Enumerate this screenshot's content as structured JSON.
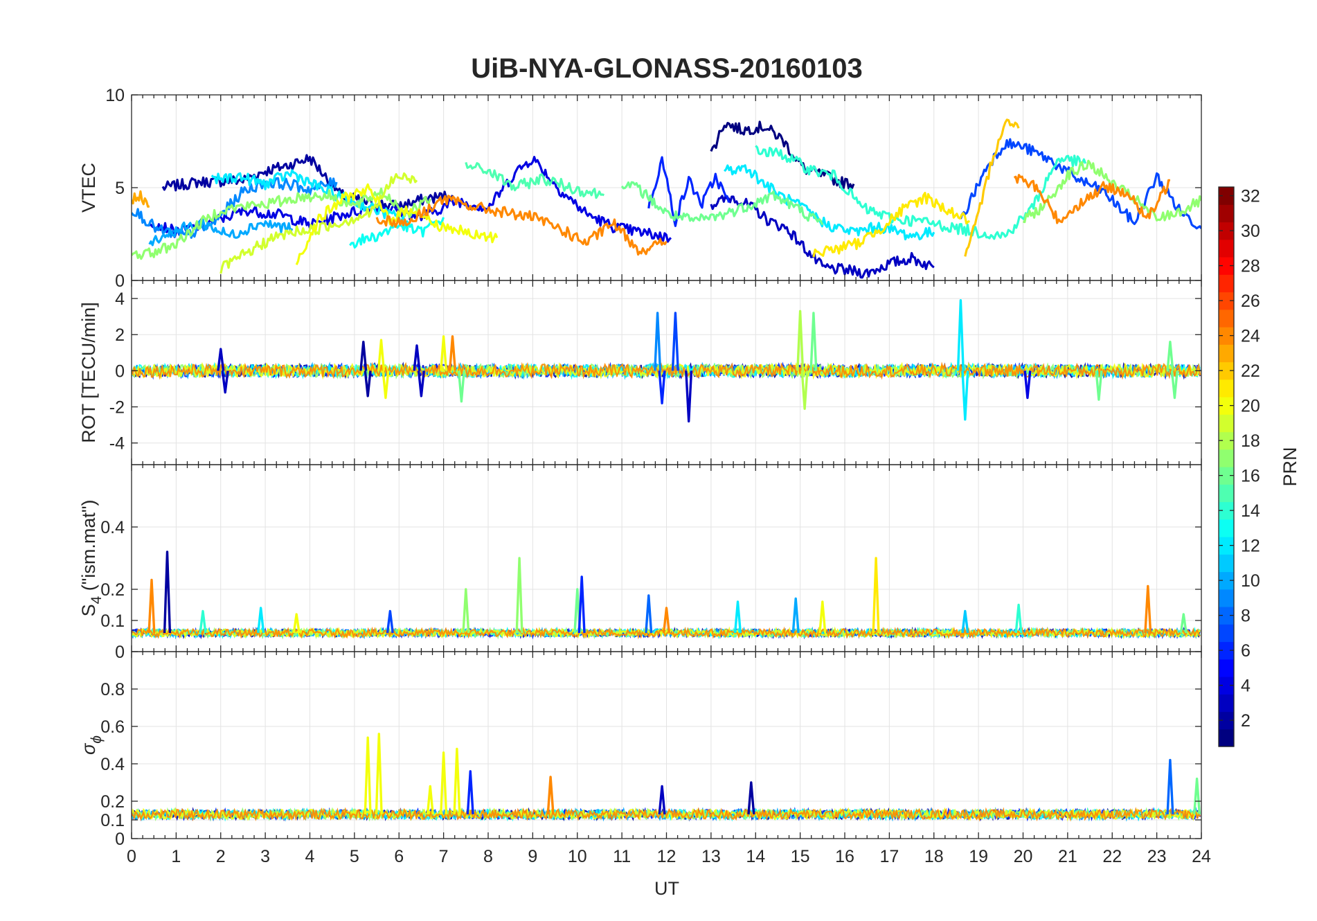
{
  "chart_data": {
    "type": "line",
    "title": "UiB-NYA-GLONASS-20160103",
    "xlabel": "UT",
    "xlim": [
      0,
      24
    ],
    "x_ticks": [
      0,
      1,
      2,
      3,
      4,
      5,
      6,
      7,
      8,
      9,
      10,
      11,
      12,
      13,
      14,
      15,
      16,
      17,
      18,
      19,
      20,
      21,
      22,
      23,
      24
    ],
    "x_tick_labels": [
      "0",
      "1",
      "2",
      "3",
      "4",
      "5",
      "6",
      "7",
      "8",
      "9",
      "10",
      "11",
      "12",
      "13",
      "14",
      "15",
      "16",
      "17",
      "18",
      "19",
      "20",
      "21",
      "22",
      "23",
      "24"
    ],
    "grid": true,
    "colorbar": {
      "label": "PRN",
      "colormap": "jet",
      "range": [
        1,
        32
      ],
      "ticks": [
        2,
        4,
        6,
        8,
        10,
        12,
        14,
        16,
        18,
        20,
        22,
        24,
        26,
        28,
        30,
        32
      ],
      "tick_labels": [
        "2",
        "4",
        "6",
        "8",
        "10",
        "12",
        "14",
        "16",
        "18",
        "20",
        "22",
        "24",
        "26",
        "28",
        "30",
        "32"
      ]
    },
    "panels": [
      {
        "id": "vtec",
        "ylabel": "VTEC",
        "ylim": [
          0,
          10
        ],
        "y_ticks": [
          0,
          5,
          10
        ],
        "y_tick_labels": [
          "0",
          "5",
          "10"
        ],
        "series": [
          {
            "prn": 2,
            "x": [
              0.7,
              1.5,
              2.5,
              3.0,
              3.5,
              4.0,
              4.7,
              5.3,
              6.0,
              6.6,
              7.2
            ],
            "y": [
              5.0,
              5.3,
              5.4,
              5.9,
              6.2,
              6.6,
              4.6,
              4.2,
              4.0,
              4.4,
              4.6
            ]
          },
          {
            "prn": 1,
            "x": [
              13.0,
              13.3,
              13.7,
              14.2,
              14.6,
              14.9,
              15.1,
              15.5,
              15.9,
              16.2
            ],
            "y": [
              6.8,
              8.5,
              8.1,
              8.3,
              7.6,
              6.6,
              6.0,
              5.7,
              5.3,
              5.2
            ]
          },
          {
            "prn": 3,
            "x": [
              13.0,
              13.5,
              14.0,
              14.3,
              14.7,
              15.5,
              16.5,
              17.0,
              17.5,
              18.0
            ],
            "y": [
              4.1,
              4.5,
              3.8,
              3.2,
              2.8,
              0.7,
              0.4,
              0.9,
              1.2,
              0.7
            ]
          },
          {
            "prn": 4,
            "x": [
              0.4,
              1.0,
              1.7,
              2.6,
              3.4,
              4.0,
              4.8,
              5.6,
              6.5,
              7.3,
              8.0,
              8.6,
              9.0,
              9.6,
              10.2,
              10.8,
              11.4,
              12.1
            ],
            "y": [
              3.2,
              2.6,
              3.1,
              3.8,
              3.5,
              3.0,
              3.6,
              4.0,
              3.4,
              4.3,
              3.9,
              5.8,
              6.6,
              4.9,
              3.6,
              2.9,
              2.6,
              2.3
            ]
          },
          {
            "prn": 6,
            "x": [
              11.6,
              11.9,
              12.2,
              12.5,
              12.8,
              13.1,
              13.4
            ],
            "y": [
              4.0,
              6.5,
              3.2,
              5.4,
              4.1,
              5.6,
              4.2
            ]
          },
          {
            "prn": 7,
            "x": [
              18.6,
              19.2,
              19.6,
              20.0,
              20.6,
              21.2,
              21.8,
              22.5,
              23.0,
              23.5,
              24.0
            ],
            "y": [
              3.2,
              6.2,
              7.4,
              7.2,
              6.5,
              5.5,
              4.8,
              3.1,
              5.6,
              3.8,
              2.8
            ]
          },
          {
            "prn": 9,
            "x": [
              0.0,
              0.6,
              1.2,
              1.8,
              2.5,
              3.0,
              3.5,
              4.0,
              4.6
            ],
            "y": [
              3.9,
              2.7,
              2.4,
              3.0,
              4.8,
              5.3,
              5.2,
              4.9,
              5.3
            ]
          },
          {
            "prn": 10,
            "x": [
              0.4,
              1.0,
              1.6,
              2.2,
              2.9,
              3.6
            ],
            "y": [
              2.1,
              2.7,
              3.1,
              2.4,
              3.1,
              2.8
            ]
          },
          {
            "prn": 12,
            "x": [
              1.8,
              2.4,
              3.0,
              3.6,
              4.2,
              4.8,
              5.5,
              6.2
            ],
            "y": [
              5.4,
              5.6,
              5.2,
              5.8,
              5.0,
              4.4,
              3.8,
              3.2
            ]
          },
          {
            "prn": 12,
            "x": [
              13.3,
              13.8,
              14.2,
              14.6,
              15.0,
              15.6,
              16.2,
              16.8,
              17.5,
              18.0
            ],
            "y": [
              5.9,
              6.1,
              5.2,
              4.5,
              4.0,
              3.0,
              2.6,
              2.9,
              2.4,
              2.6
            ]
          },
          {
            "prn": 13,
            "x": [
              4.9,
              5.5,
              6.0,
              6.5,
              7.0
            ],
            "y": [
              2.0,
              2.4,
              3.0,
              2.6,
              3.4
            ]
          },
          {
            "prn": 14,
            "x": [
              14.0,
              14.6,
              15.2,
              15.8,
              16.4,
              17.1,
              17.7,
              18.3,
              19.0,
              19.6,
              20.2,
              20.8,
              21.4
            ],
            "y": [
              7.0,
              6.8,
              6.0,
              5.6,
              3.9,
              3.3,
              3.2,
              2.9,
              2.6,
              2.4,
              3.9,
              6.6,
              6.3
            ]
          },
          {
            "prn": 15,
            "x": [
              7.5,
              8.0,
              8.6,
              9.2,
              10.0,
              10.6
            ],
            "y": [
              6.2,
              5.9,
              5.0,
              5.5,
              4.9,
              4.6
            ]
          },
          {
            "prn": 16,
            "x": [
              11.0,
              11.4,
              12.0,
              12.6,
              13.2,
              13.8,
              14.4,
              15.0,
              15.5
            ],
            "y": [
              5.3,
              4.9,
              3.6,
              3.2,
              3.5,
              4.0,
              4.6,
              3.8,
              3.0
            ]
          },
          {
            "prn": 17,
            "x": [
              0.0,
              0.5,
              1.0,
              1.5,
              2.0,
              2.6,
              3.2,
              3.8,
              4.4,
              5.0,
              5.6,
              6.2,
              6.7
            ],
            "y": [
              1.4,
              1.5,
              2.0,
              3.0,
              3.8,
              4.0,
              4.2,
              4.5,
              4.6,
              4.0,
              4.8,
              3.6,
              4.4
            ]
          },
          {
            "prn": 17,
            "x": [
              20.0,
              20.5,
              21.0,
              21.5,
              22.0,
              22.5,
              23.0,
              23.6,
              24.0
            ],
            "y": [
              3.2,
              4.1,
              5.7,
              6.3,
              5.2,
              4.4,
              3.3,
              3.8,
              4.3
            ]
          },
          {
            "prn": 19,
            "x": [
              2.0,
              2.6,
              3.1,
              3.6,
              4.2,
              4.8,
              5.4,
              5.9,
              6.4
            ],
            "y": [
              0.6,
              1.5,
              2.2,
              2.6,
              2.8,
              3.2,
              3.7,
              5.6,
              5.4
            ]
          },
          {
            "prn": 20,
            "x": [
              3.7,
              4.2,
              4.8,
              5.3,
              5.8,
              6.3,
              6.8,
              7.2,
              7.7,
              8.2
            ],
            "y": [
              1.0,
              3.3,
              4.5,
              4.9,
              3.3,
              3.9,
              3.0,
              2.8,
              2.4,
              2.3
            ]
          },
          {
            "prn": 21,
            "x": [
              15.3,
              15.8,
              16.3,
              16.8,
              17.3,
              17.8,
              18.3,
              18.8
            ],
            "y": [
              1.5,
              1.7,
              2.0,
              2.8,
              3.8,
              4.5,
              3.8,
              3.2
            ]
          },
          {
            "prn": 22,
            "x": [
              18.7,
              19.0,
              19.3,
              19.6,
              19.9
            ],
            "y": [
              1.2,
              3.5,
              6.5,
              8.6,
              8.2
            ]
          },
          {
            "prn": 23,
            "x": [
              0.0,
              0.2,
              0.4
            ],
            "y": [
              4.4,
              4.6,
              4.0
            ]
          },
          {
            "prn": 24,
            "x": [
              5.5,
              6.2,
              7.0,
              7.6,
              8.3,
              9.0,
              9.6,
              10.2,
              10.8,
              11.4,
              12.0
            ],
            "y": [
              3.3,
              3.1,
              4.4,
              4.0,
              3.7,
              3.4,
              2.8,
              2.0,
              3.1,
              1.6,
              2.1
            ]
          },
          {
            "prn": 24,
            "x": [
              19.8,
              20.3,
              20.8,
              21.3,
              21.8,
              22.3,
              22.8,
              23.3
            ],
            "y": [
              5.6,
              5.0,
              3.2,
              4.2,
              5.0,
              4.8,
              3.3,
              5.4
            ]
          }
        ]
      },
      {
        "id": "rot",
        "ylabel": "ROT [TECU/min]",
        "ylim": [
          -5.2,
          5
        ],
        "y_ticks": [
          -4,
          -2,
          0,
          2,
          4
        ],
        "y_tick_labels": [
          "-4",
          "-2",
          "0",
          "2",
          "4"
        ],
        "baseline": 0,
        "spikes": [
          {
            "prn": 3,
            "x": 2.0,
            "y": 1.2
          },
          {
            "prn": 3,
            "x": 2.1,
            "y": -1.2
          },
          {
            "prn": 2,
            "x": 5.2,
            "y": 1.6
          },
          {
            "prn": 2,
            "x": 5.3,
            "y": -1.4
          },
          {
            "prn": 20,
            "x": 5.6,
            "y": 1.7
          },
          {
            "prn": 20,
            "x": 5.7,
            "y": -1.5
          },
          {
            "prn": 3,
            "x": 6.4,
            "y": 1.4
          },
          {
            "prn": 3,
            "x": 6.5,
            "y": -1.4
          },
          {
            "prn": 20,
            "x": 7.0,
            "y": 1.9
          },
          {
            "prn": 24,
            "x": 7.2,
            "y": 1.9
          },
          {
            "prn": 16,
            "x": 7.4,
            "y": -1.7
          },
          {
            "prn": 9,
            "x": 11.8,
            "y": 3.2
          },
          {
            "prn": 6,
            "x": 11.9,
            "y": -1.8
          },
          {
            "prn": 7,
            "x": 12.2,
            "y": 3.2
          },
          {
            "prn": 3,
            "x": 12.5,
            "y": -2.8
          },
          {
            "prn": 18,
            "x": 15.0,
            "y": 3.3
          },
          {
            "prn": 18,
            "x": 15.1,
            "y": -2.1
          },
          {
            "prn": 16,
            "x": 15.3,
            "y": 3.2
          },
          {
            "prn": 12,
            "x": 18.6,
            "y": 3.9
          },
          {
            "prn": 12,
            "x": 18.7,
            "y": -2.7
          },
          {
            "prn": 16,
            "x": 21.7,
            "y": -1.6
          },
          {
            "prn": 4,
            "x": 20.1,
            "y": -1.5
          },
          {
            "prn": 16,
            "x": 23.3,
            "y": 1.6
          },
          {
            "prn": 16,
            "x": 23.4,
            "y": -1.5
          }
        ]
      },
      {
        "id": "s4",
        "ylabel": "S",
        "ylabel_subscript": "4",
        "ylabel_suffix": " (\"ism.mat\")",
        "ylim": [
          0,
          0.6
        ],
        "y_ticks": [
          0,
          0.1,
          0.2,
          0.4
        ],
        "y_tick_labels": [
          "0",
          "0.1",
          "0.2",
          "0.4"
        ],
        "baseline": 0.06,
        "spikes": [
          {
            "prn": 24,
            "x": 0.45,
            "y": 0.23
          },
          {
            "prn": 2,
            "x": 0.8,
            "y": 0.32
          },
          {
            "prn": 14,
            "x": 1.6,
            "y": 0.13
          },
          {
            "prn": 12,
            "x": 2.9,
            "y": 0.14
          },
          {
            "prn": 20,
            "x": 3.7,
            "y": 0.12
          },
          {
            "prn": 7,
            "x": 5.8,
            "y": 0.13
          },
          {
            "prn": 17,
            "x": 7.5,
            "y": 0.2
          },
          {
            "prn": 17,
            "x": 8.7,
            "y": 0.3
          },
          {
            "prn": 16,
            "x": 10.0,
            "y": 0.2
          },
          {
            "prn": 6,
            "x": 10.1,
            "y": 0.24
          },
          {
            "prn": 8,
            "x": 11.6,
            "y": 0.18
          },
          {
            "prn": 24,
            "x": 12.0,
            "y": 0.14
          },
          {
            "prn": 12,
            "x": 13.6,
            "y": 0.16
          },
          {
            "prn": 10,
            "x": 14.9,
            "y": 0.17
          },
          {
            "prn": 20,
            "x": 15.5,
            "y": 0.16
          },
          {
            "prn": 21,
            "x": 16.7,
            "y": 0.3
          },
          {
            "prn": 11,
            "x": 18.7,
            "y": 0.13
          },
          {
            "prn": 14,
            "x": 19.9,
            "y": 0.15
          },
          {
            "prn": 24,
            "x": 22.8,
            "y": 0.21
          },
          {
            "prn": 16,
            "x": 23.6,
            "y": 0.12
          }
        ]
      },
      {
        "id": "sigma_phi",
        "ylabel": "σ",
        "ylabel_subscript": "ϕ",
        "ylim": [
          0,
          1
        ],
        "y_ticks": [
          0,
          0.1,
          0.2,
          0.4,
          0.6,
          0.8
        ],
        "y_tick_labels": [
          "0",
          "0.1",
          "0.2",
          "0.4",
          "0.6",
          "0.8"
        ],
        "baseline": 0.13,
        "spikes": [
          {
            "prn": 20,
            "x": 5.3,
            "y": 0.54
          },
          {
            "prn": 20,
            "x": 5.55,
            "y": 0.56
          },
          {
            "prn": 20,
            "x": 6.7,
            "y": 0.28
          },
          {
            "prn": 20,
            "x": 7.0,
            "y": 0.46
          },
          {
            "prn": 20,
            "x": 7.3,
            "y": 0.48
          },
          {
            "prn": 6,
            "x": 7.6,
            "y": 0.36
          },
          {
            "prn": 24,
            "x": 9.4,
            "y": 0.33
          },
          {
            "prn": 3,
            "x": 11.9,
            "y": 0.28
          },
          {
            "prn": 2,
            "x": 13.9,
            "y": 0.3
          },
          {
            "prn": 8,
            "x": 23.3,
            "y": 0.42
          },
          {
            "prn": 16,
            "x": 23.9,
            "y": 0.32
          }
        ]
      }
    ]
  }
}
